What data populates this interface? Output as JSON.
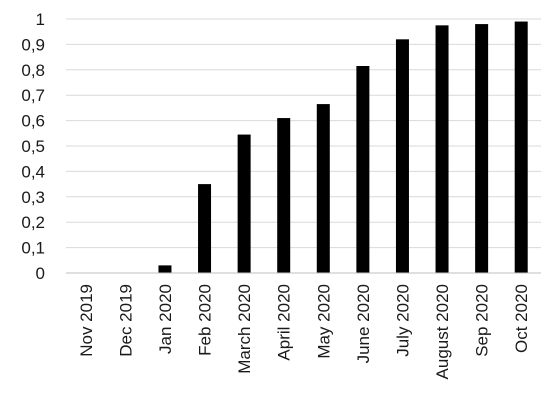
{
  "chart_data": {
    "type": "bar",
    "title": "",
    "xlabel": "",
    "ylabel": "",
    "categories": [
      "Nov 2019",
      "Dec 2019",
      "Jan 2020",
      "Feb 2020",
      "March 2020",
      "April 2020",
      "May 2020",
      "June 2020",
      "July 2020",
      "August 2020",
      "Sep 2020",
      "Oct 2020"
    ],
    "values": [
      0,
      0,
      0.03,
      0.35,
      0.545,
      0.61,
      0.665,
      0.815,
      0.92,
      0.975,
      0.98,
      0.99
    ],
    "ylim": [
      0,
      1
    ],
    "yticks": [
      0,
      0.1,
      0.2,
      0.3,
      0.4,
      0.5,
      0.6,
      0.7,
      0.8,
      0.9,
      1
    ],
    "ytick_labels": [
      "0",
      "0,1",
      "0,2",
      "0,3",
      "0,4",
      "0,5",
      "0,6",
      "0,7",
      "0,8",
      "0,9",
      "1"
    ],
    "grid": true,
    "bar_color": "#000000",
    "legend": "none"
  }
}
